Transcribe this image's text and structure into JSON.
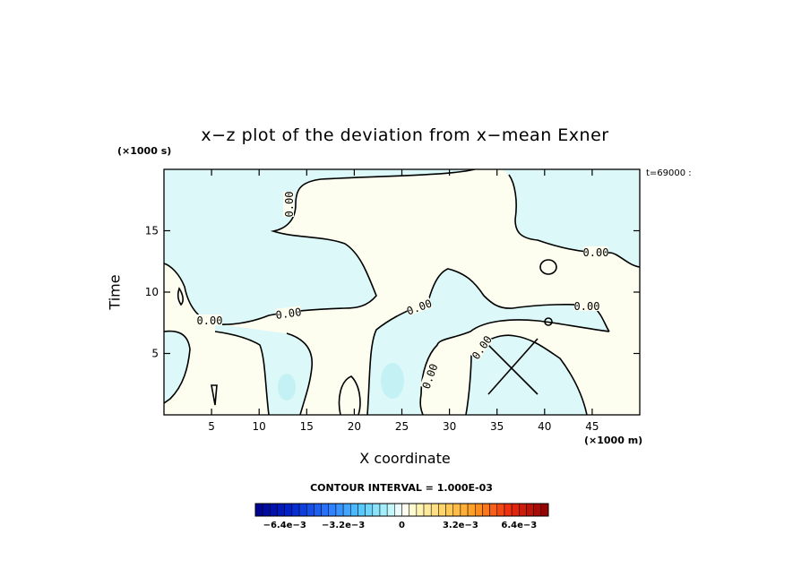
{
  "chart_data": {
    "type": "heatmap",
    "title": "x−z plot of the deviation from x−mean Exner",
    "xlabel": "X coordinate",
    "ylabel": "Time",
    "x_unit": "(×1000 m)",
    "y_unit": "(×1000 s)",
    "time_label": "t=69000 :",
    "xlim": [
      0,
      50
    ],
    "ylim": [
      0,
      20
    ],
    "x_ticks": [
      5,
      10,
      15,
      20,
      25,
      30,
      35,
      40,
      45
    ],
    "y_ticks": [
      5,
      10,
      15
    ],
    "contour_labels": [
      "0.00",
      "0.00",
      "0.00",
      "0.00",
      "0.00",
      "0.00"
    ],
    "contour_interval": "CONTOUR INTERVAL = 1.000E-03",
    "colorbar": {
      "range": [
        -0.008,
        0.008
      ],
      "tick_labels": [
        "−6.4e−3",
        "−3.2e−3",
        "0",
        "3.2e−3",
        "6.4e−3"
      ],
      "tick_values": [
        -0.0064,
        -0.0032,
        0,
        0.0032,
        0.0064
      ]
    },
    "colors": {
      "negative_fill": "#dcf8f8",
      "positive_fill": "#fdfdf0",
      "strong_negative": "#c4f2f4"
    }
  }
}
